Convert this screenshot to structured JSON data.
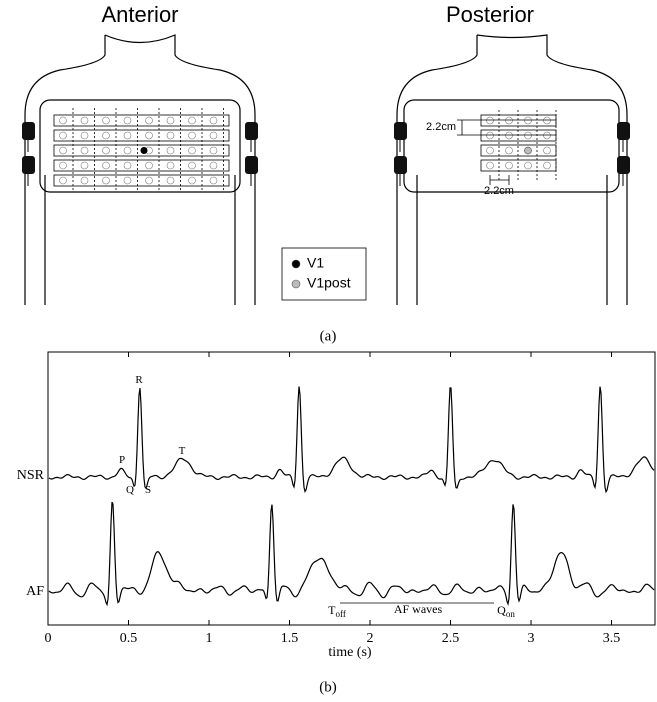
{
  "figure_a": {
    "panels": [
      {
        "title": "Anterior"
      },
      {
        "title": "Posterior"
      }
    ],
    "dimension_labels": [
      "2.2cm",
      "2.2cm"
    ],
    "legend": [
      {
        "label": "V1",
        "color": "#000000"
      },
      {
        "label": "V1post",
        "color": "#bbbbbb"
      }
    ],
    "caption": "(a)"
  },
  "chart_data": {
    "type": "line",
    "xlabel": "time (s)",
    "xlim": [
      0,
      3.77
    ],
    "xticks": [
      0,
      0.5,
      1,
      1.5,
      2,
      2.5,
      3,
      3.5
    ],
    "trace_labels": [
      "NSR",
      "AF"
    ],
    "annotations": [
      {
        "main": "P"
      },
      {
        "main": "Q"
      },
      {
        "main": "R"
      },
      {
        "main": "S"
      },
      {
        "main": "T"
      },
      {
        "main": "T",
        "sub": "off"
      },
      {
        "main": "AF waves"
      },
      {
        "main": "Q",
        "sub": "on"
      }
    ],
    "caption": "(b)"
  }
}
